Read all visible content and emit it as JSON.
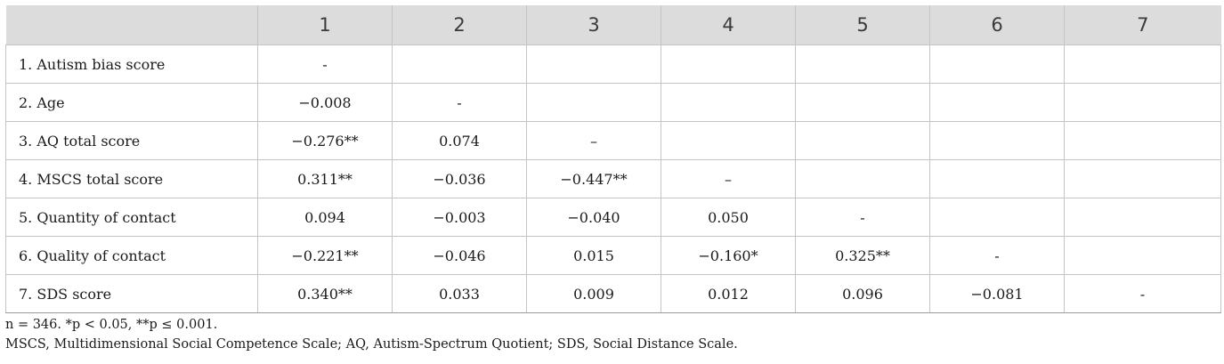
{
  "table": {
    "columns": [
      "",
      "1",
      "2",
      "3",
      "4",
      "5",
      "6",
      "7"
    ],
    "rows": [
      {
        "label": "1. Autism bias score",
        "cells": [
          "-",
          "",
          "",
          "",
          "",
          "",
          ""
        ]
      },
      {
        "label": "2. Age",
        "cells": [
          "−0.008",
          "-",
          "",
          "",
          "",
          "",
          ""
        ]
      },
      {
        "label": "3. AQ total score",
        "cells": [
          "−0.276**",
          "0.074",
          "–",
          "",
          "",
          "",
          ""
        ]
      },
      {
        "label": "4. MSCS total score",
        "cells": [
          "0.311**",
          "−0.036",
          "−0.447**",
          "–",
          "",
          "",
          ""
        ]
      },
      {
        "label": "5. Quantity of contact",
        "cells": [
          "0.094",
          "−0.003",
          "−0.040",
          "0.050",
          "-",
          "",
          ""
        ]
      },
      {
        "label": "6. Quality of contact",
        "cells": [
          "−0.221**",
          "−0.046",
          "0.015",
          "−0.160*",
          "0.325**",
          "-",
          ""
        ]
      },
      {
        "label": "7. SDS score",
        "cells": [
          "0.340**",
          "0.033",
          "0.009",
          "0.012",
          "0.096",
          "−0.081",
          "-"
        ]
      }
    ]
  },
  "notes": {
    "line1": "n = 346. *p < 0.05, **p ≤ 0.001.",
    "line2": "MSCS, Multidimensional Social Competence Scale; AQ, Autism-Spectrum Quotient; SDS, Social Distance Scale."
  }
}
